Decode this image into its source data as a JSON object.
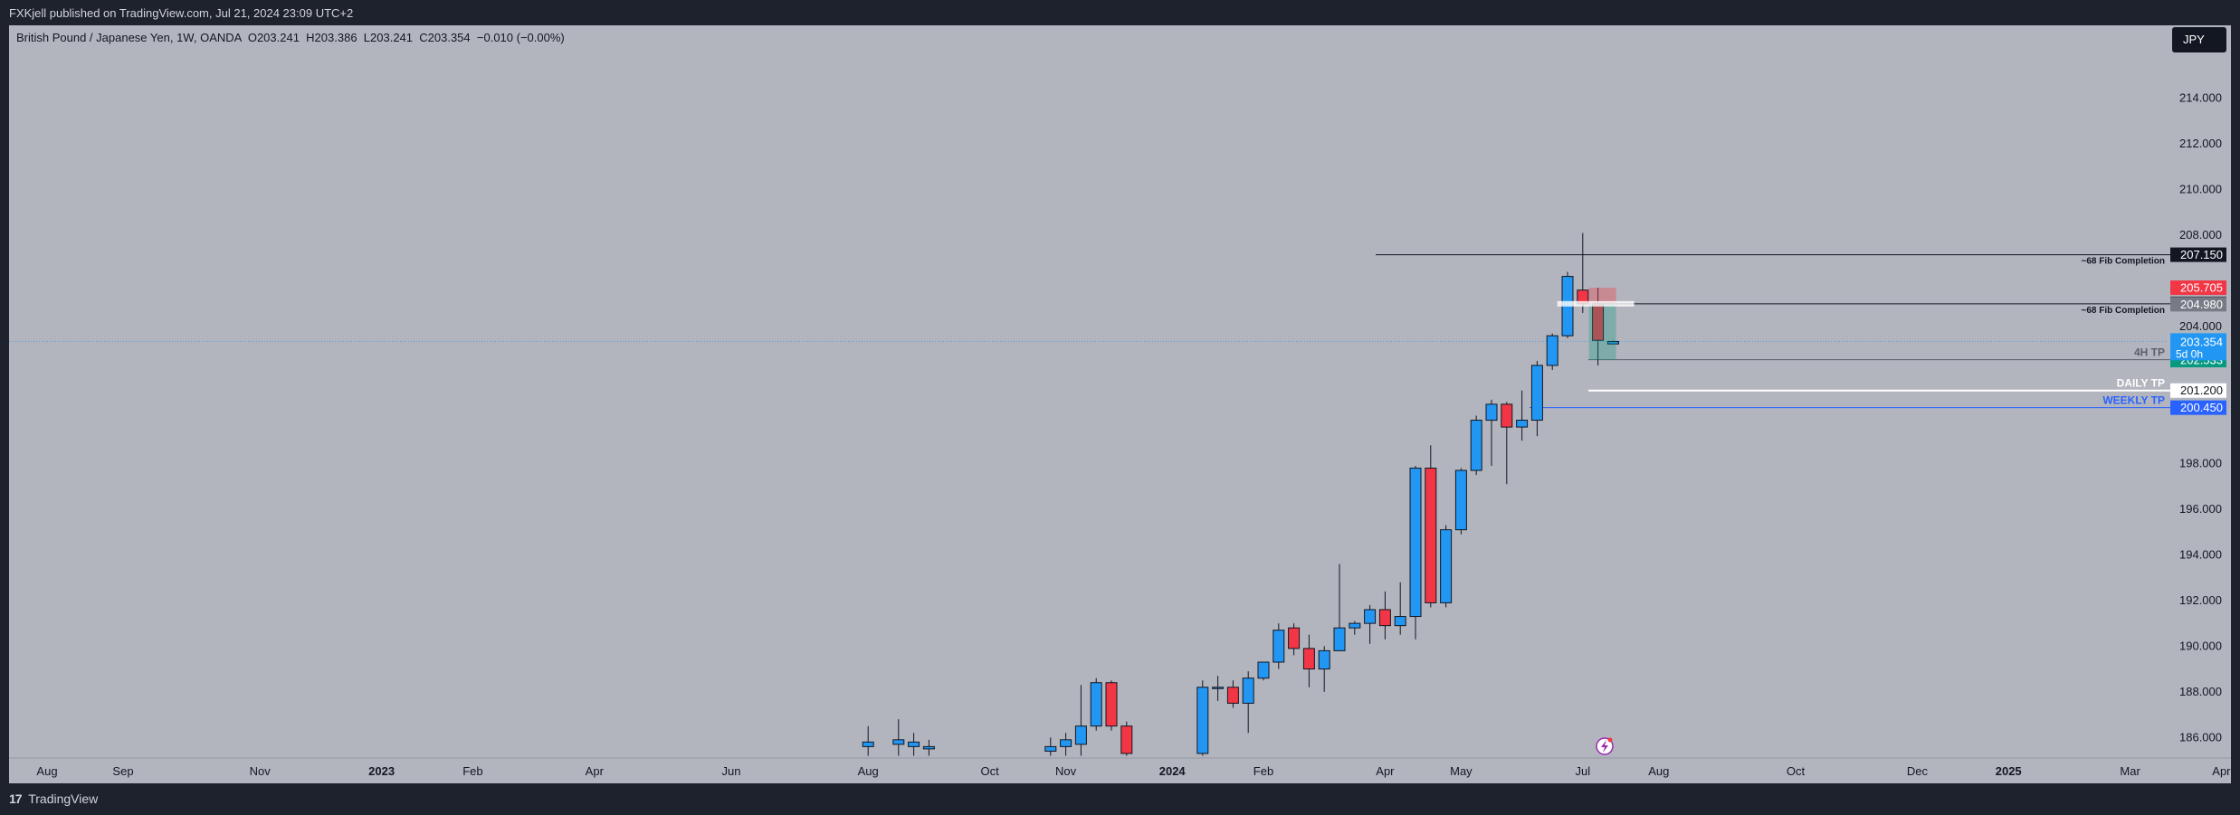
{
  "header": {
    "published": "FXKjell published on TradingView.com, Jul 21, 2024 23:09 UTC+2"
  },
  "legend": {
    "symbol": "British Pound / Japanese Yen, 1W, OANDA",
    "open": "O203.241",
    "high": "H203.386",
    "low": "L203.241",
    "close": "C203.354",
    "change": "−0.010 (−0.00%)"
  },
  "currency_button": "JPY",
  "footer": {
    "brand": "TradingView"
  },
  "colors": {
    "up": "#2196f3",
    "down": "#f23645",
    "background": "#b2b5be",
    "weekly_tp": "#2962ff",
    "current_price": "#2196f3",
    "target_green": "#089981"
  },
  "chart_data": {
    "type": "candlestick",
    "symbol": "GBPJPY",
    "timeframe": "1W",
    "ylim": [
      185.1,
      217.2
    ],
    "y_ticks": [
      "214.000",
      "212.000",
      "210.000",
      "208.000",
      "204.000",
      "198.000",
      "196.000",
      "194.000",
      "192.000",
      "190.000",
      "188.000",
      "186.000"
    ],
    "x_ticks": [
      "Aug",
      "Sep",
      "Nov",
      "2023",
      "Feb",
      "Apr",
      "Jun",
      "Aug",
      "Oct",
      "Nov",
      "2024",
      "Feb",
      "Apr",
      "May",
      "Jul",
      "Aug",
      "Oct",
      "Dec",
      "2025",
      "Mar",
      "Apr"
    ],
    "x_tick_positions": [
      0,
      2.5,
      7,
      11,
      14,
      18,
      22.5,
      27,
      31,
      33.5,
      37,
      40,
      44,
      46.5,
      50.5,
      53,
      57.5,
      61.5,
      64.5,
      68.5,
      71.5
    ],
    "candles": [
      {
        "i": 27,
        "o": 185.6,
        "h": 186.5,
        "l": 185.2,
        "c": 185.8
      },
      {
        "i": 28,
        "o": 185.7,
        "h": 186.8,
        "l": 185.2,
        "c": 185.9
      },
      {
        "i": 28.5,
        "o": 185.6,
        "h": 186.2,
        "l": 185.2,
        "c": 185.8
      },
      {
        "i": 29,
        "o": 185.5,
        "h": 185.9,
        "l": 185.2,
        "c": 185.6
      },
      {
        "i": 33,
        "o": 185.4,
        "h": 186.0,
        "l": 185.2,
        "c": 185.6
      },
      {
        "i": 33.5,
        "o": 185.6,
        "h": 186.2,
        "l": 185.2,
        "c": 185.9
      },
      {
        "i": 34,
        "o": 185.7,
        "h": 188.3,
        "l": 185.2,
        "c": 186.5
      },
      {
        "i": 34.5,
        "o": 186.5,
        "h": 188.6,
        "l": 186.3,
        "c": 188.4
      },
      {
        "i": 35,
        "o": 188.4,
        "h": 188.5,
        "l": 186.3,
        "c": 186.5
      },
      {
        "i": 35.5,
        "o": 186.5,
        "h": 186.7,
        "l": 185.2,
        "c": 185.3
      },
      {
        "i": 38,
        "o": 185.3,
        "h": 188.5,
        "l": 185.2,
        "c": 188.2
      },
      {
        "i": 38.5,
        "o": 188.2,
        "h": 188.7,
        "l": 187.6,
        "c": 188.2
      },
      {
        "i": 39,
        "o": 188.2,
        "h": 188.5,
        "l": 187.3,
        "c": 187.5
      },
      {
        "i": 39.5,
        "o": 187.5,
        "h": 188.9,
        "l": 186.2,
        "c": 188.6
      },
      {
        "i": 40,
        "o": 188.6,
        "h": 189.1,
        "l": 188.5,
        "c": 189.3
      },
      {
        "i": 40.5,
        "o": 189.3,
        "h": 191.0,
        "l": 189.0,
        "c": 190.7
      },
      {
        "i": 41,
        "o": 190.8,
        "h": 191.0,
        "l": 189.6,
        "c": 189.9
      },
      {
        "i": 41.5,
        "o": 189.9,
        "h": 190.5,
        "l": 188.2,
        "c": 189.0
      },
      {
        "i": 42,
        "o": 189.0,
        "h": 190.0,
        "l": 188.0,
        "c": 189.8
      },
      {
        "i": 42.5,
        "o": 189.8,
        "h": 193.6,
        "l": 189.8,
        "c": 190.8
      },
      {
        "i": 43,
        "o": 190.8,
        "h": 191.1,
        "l": 190.5,
        "c": 191.0
      },
      {
        "i": 43.5,
        "o": 191.0,
        "h": 191.8,
        "l": 190.1,
        "c": 191.6
      },
      {
        "i": 44,
        "o": 191.6,
        "h": 192.4,
        "l": 190.3,
        "c": 190.9
      },
      {
        "i": 44.5,
        "o": 190.9,
        "h": 192.8,
        "l": 190.5,
        "c": 191.3
      },
      {
        "i": 45,
        "o": 191.3,
        "h": 197.9,
        "l": 190.3,
        "c": 197.8
      },
      {
        "i": 45.5,
        "o": 197.8,
        "h": 198.8,
        "l": 191.7,
        "c": 191.9
      },
      {
        "i": 46,
        "o": 191.9,
        "h": 195.3,
        "l": 191.7,
        "c": 195.1
      },
      {
        "i": 46.5,
        "o": 195.1,
        "h": 197.8,
        "l": 194.9,
        "c": 197.7
      },
      {
        "i": 47,
        "o": 197.7,
        "h": 200.1,
        "l": 197.5,
        "c": 199.9
      },
      {
        "i": 47.5,
        "o": 199.9,
        "h": 200.8,
        "l": 197.9,
        "c": 200.6
      },
      {
        "i": 48,
        "o": 200.6,
        "h": 200.7,
        "l": 197.1,
        "c": 199.6
      },
      {
        "i": 48.5,
        "o": 199.6,
        "h": 201.2,
        "l": 199.0,
        "c": 199.9
      },
      {
        "i": 49,
        "o": 199.9,
        "h": 202.5,
        "l": 199.2,
        "c": 202.3
      },
      {
        "i": 49.5,
        "o": 202.3,
        "h": 203.7,
        "l": 202.1,
        "c": 203.6
      },
      {
        "i": 50,
        "o": 203.6,
        "h": 206.4,
        "l": 203.5,
        "c": 206.2
      },
      {
        "i": 50.5,
        "o": 205.6,
        "h": 208.1,
        "l": 204.6,
        "c": 205.0
      },
      {
        "i": 51,
        "o": 205.0,
        "h": 205.7,
        "l": 202.3,
        "c": 203.4
      },
      {
        "i": 51.5,
        "o": 203.24,
        "h": 203.39,
        "l": 203.24,
        "c": 203.35
      }
    ],
    "levels": [
      {
        "price": 207.15,
        "label": "~68 Fib Completion",
        "tag": "207.150",
        "color": "#131722"
      },
      {
        "price": 205.0,
        "label": "~68 Fib Completion",
        "tag": "205.000",
        "color": "#131722"
      },
      {
        "price": 202.55,
        "label": "4H TP",
        "tag": "202.550",
        "color": "#5d606b"
      },
      {
        "price": 201.2,
        "label": "DAILY TP",
        "tag": "201.200",
        "color": "#ffffff"
      },
      {
        "price": 200.45,
        "label": "WEEKLY TP",
        "tag": "200.450",
        "color": "#2962ff"
      }
    ],
    "price_tags": [
      {
        "price": 205.705,
        "text": "205.705",
        "bg": "#f23645",
        "fg": "#ffffff"
      },
      {
        "price": 204.98,
        "text": "204.980",
        "bg": "#787b86",
        "fg": "#ffffff"
      },
      {
        "price": 202.533,
        "text": "202.533",
        "bg": "#089981",
        "fg": "#ffffff"
      }
    ],
    "current_price": {
      "price": 203.354,
      "text": "203.354",
      "countdown": "5d 0h"
    }
  }
}
